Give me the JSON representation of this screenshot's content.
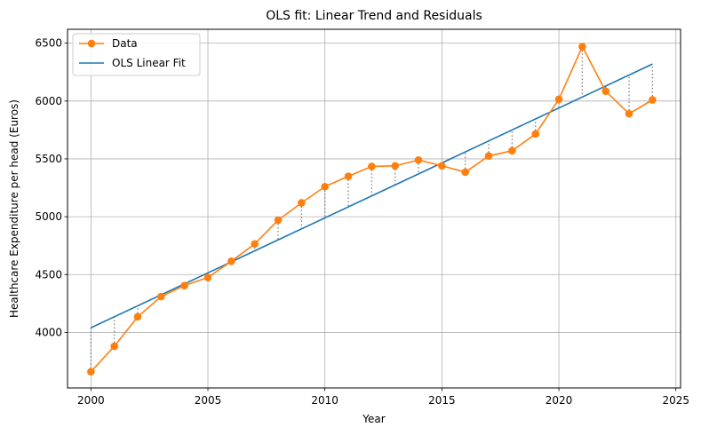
{
  "chart_data": {
    "type": "line",
    "title": "OLS fit: Linear Trend and Residuals",
    "xlabel": "Year",
    "ylabel": "Healthcare Expenditure per head (Euros)",
    "xlim": [
      1999.0,
      2025.2
    ],
    "ylim": [
      3520,
      6620
    ],
    "xticks": [
      2000,
      2005,
      2010,
      2015,
      2020,
      2025
    ],
    "yticks": [
      4000,
      4500,
      5000,
      5500,
      6000,
      6500
    ],
    "grid": true,
    "legend_position": "top-left",
    "x": [
      2000,
      2001,
      2002,
      2003,
      2004,
      2005,
      2006,
      2007,
      2008,
      2009,
      2010,
      2011,
      2012,
      2013,
      2014,
      2015,
      2016,
      2017,
      2018,
      2019,
      2020,
      2021,
      2022,
      2023,
      2024
    ],
    "series": [
      {
        "name": "Data",
        "kind": "line-marker",
        "color": "#ff7f0e",
        "values": [
          3660,
          3880,
          4135,
          4310,
          4405,
          4475,
          4615,
          4765,
          4970,
          5120,
          5260,
          5350,
          5435,
          5440,
          5490,
          5440,
          5385,
          5525,
          5570,
          5715,
          6015,
          6470,
          6085,
          5890,
          6010
        ]
      },
      {
        "name": "OLS Linear Fit",
        "kind": "line",
        "color": "#1f77b4",
        "x": [
          2000,
          2024
        ],
        "values": [
          4040,
          6320
        ]
      }
    ],
    "residual_style": {
      "color": "#808080",
      "dash": "dotted"
    }
  }
}
